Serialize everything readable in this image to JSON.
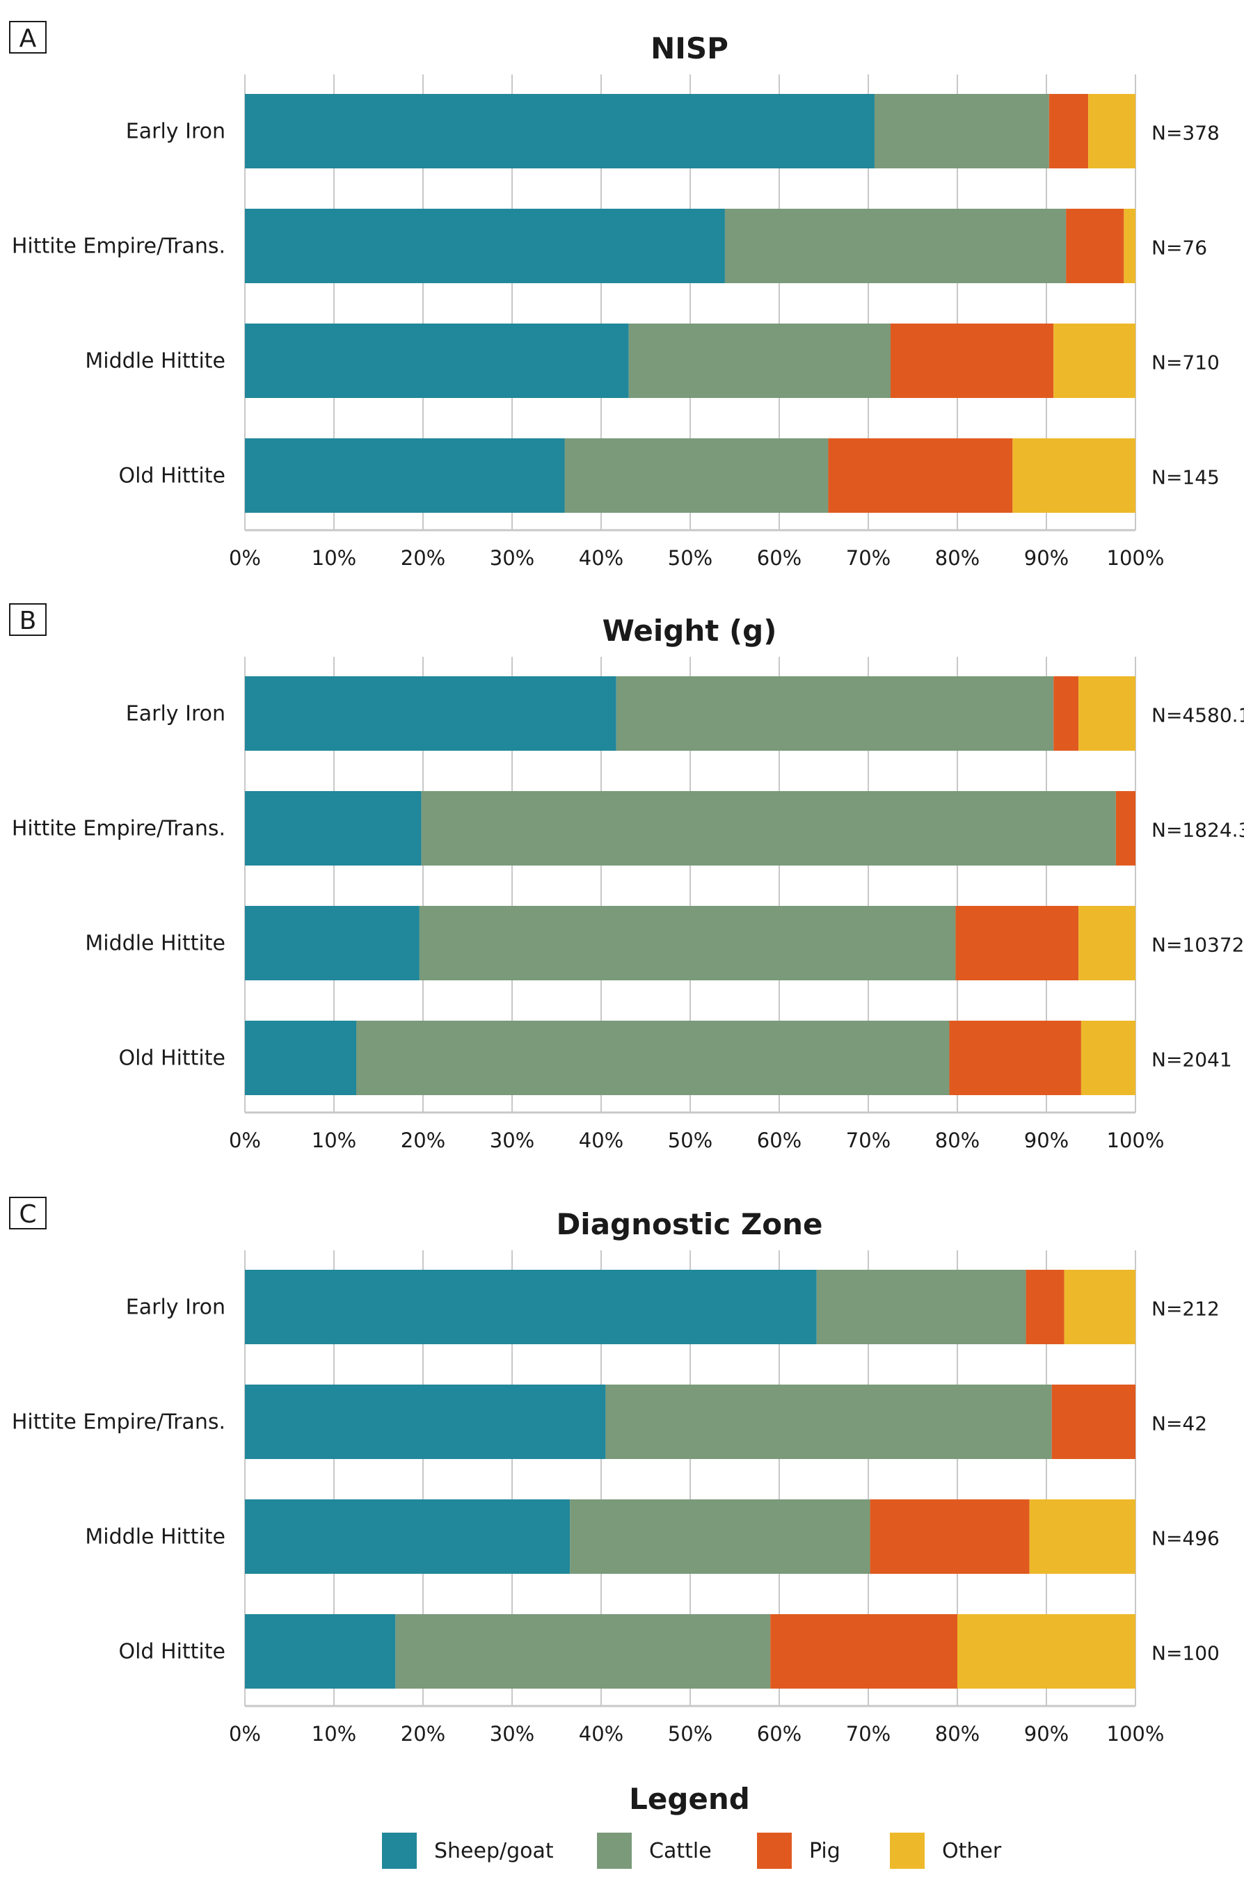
{
  "chart_data": [
    {
      "type": "bar",
      "stacked": "percent",
      "orientation": "horizontal",
      "panel": "A",
      "title": "NISP",
      "categories": [
        "Early Iron",
        "Hittite Empire/Trans.",
        "Middle Hittite",
        "Old Hittite"
      ],
      "n_labels": [
        "N=378",
        "N=76",
        "N=710",
        "N=145"
      ],
      "series": [
        {
          "name": "Sheep/goat",
          "values": [
            70.7,
            53.9,
            43.1,
            35.9
          ]
        },
        {
          "name": "Cattle",
          "values": [
            19.6,
            38.3,
            29.4,
            29.6
          ]
        },
        {
          "name": "Pig",
          "values": [
            4.4,
            6.5,
            18.3,
            20.7
          ]
        },
        {
          "name": "Other",
          "values": [
            5.3,
            1.3,
            9.2,
            13.8
          ]
        }
      ],
      "xticks": [
        "0%",
        "10%",
        "20%",
        "30%",
        "40%",
        "50%",
        "60%",
        "70%",
        "80%",
        "90%",
        "100%"
      ],
      "xlim": [
        0,
        100
      ],
      "grid": true
    },
    {
      "type": "bar",
      "stacked": "percent",
      "orientation": "horizontal",
      "panel": "B",
      "title": "Weight (g)",
      "categories": [
        "Early Iron",
        "Hittite Empire/Trans.",
        "Middle Hittite",
        "Old Hittite"
      ],
      "n_labels": [
        "N=4580.1",
        "N=1824.3",
        "N=10372.",
        "N=2041"
      ],
      "series": [
        {
          "name": "Sheep/goat",
          "values": [
            41.7,
            19.8,
            19.6,
            12.5
          ]
        },
        {
          "name": "Cattle",
          "values": [
            49.1,
            78.0,
            60.2,
            66.6
          ]
        },
        {
          "name": "Pig",
          "values": [
            2.8,
            2.2,
            13.8,
            14.8
          ]
        },
        {
          "name": "Other",
          "values": [
            6.4,
            0,
            6.4,
            6.1
          ]
        }
      ],
      "xticks": [
        "0%",
        "10%",
        "20%",
        "30%",
        "40%",
        "50%",
        "60%",
        "70%",
        "80%",
        "90%",
        "100%"
      ],
      "xlim": [
        0,
        100
      ],
      "grid": true
    },
    {
      "type": "bar",
      "stacked": "percent",
      "orientation": "horizontal",
      "panel": "C",
      "title": "Diagnostic Zone",
      "categories": [
        "Early Iron",
        "Hittite Empire/Trans.",
        "Middle Hittite",
        "Old Hittite"
      ],
      "n_labels": [
        "N=212",
        "N=42",
        "N=496",
        "N=100"
      ],
      "series": [
        {
          "name": "Sheep/goat",
          "values": [
            64.2,
            40.5,
            36.5,
            16.9
          ]
        },
        {
          "name": "Cattle",
          "values": [
            23.5,
            50.1,
            33.7,
            42.1
          ]
        },
        {
          "name": "Pig",
          "values": [
            4.3,
            9.4,
            17.9,
            21.0
          ]
        },
        {
          "name": "Other",
          "values": [
            8.0,
            0,
            11.9,
            20.0
          ]
        }
      ],
      "xticks": [
        "0%",
        "10%",
        "20%",
        "30%",
        "40%",
        "50%",
        "60%",
        "70%",
        "80%",
        "90%",
        "100%"
      ],
      "xlim": [
        0,
        100
      ],
      "grid": true
    }
  ],
  "legend": {
    "title": "Legend",
    "placement": "bottom",
    "items": [
      {
        "label": "Sheep/goat",
        "color": "#21879A"
      },
      {
        "label": "Cattle",
        "color": "#7A9A7A"
      },
      {
        "label": "Pig",
        "color": "#E05A20"
      },
      {
        "label": "Other",
        "color": "#EDB92A"
      }
    ]
  }
}
